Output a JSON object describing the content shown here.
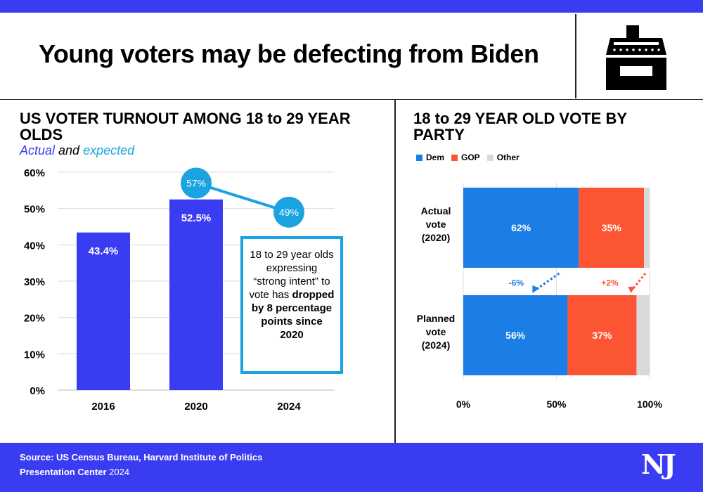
{
  "header": {
    "title": "Young voters may be defecting from Biden",
    "icon": "ballot-box-icon"
  },
  "left_panel": {
    "title_line1": "US VOTER TURNOUT AMONG 18 to 29 YEAR",
    "title_line2": "OLDS",
    "subtitle_actual": "Actual",
    "subtitle_and": " and ",
    "subtitle_expected": "expected",
    "note_plain": "18 to 29 year olds expressing “strong intent” to vote has",
    "note_bold": "dropped by 8 percentage points since 2020"
  },
  "right_panel": {
    "title_line1": "18 to 29 YEAR OLD VOTE BY",
    "title_line2": "PARTY",
    "legend": [
      "Dem",
      "GOP",
      "Other"
    ]
  },
  "colors": {
    "actual": "#3a3cf2",
    "expected": "#1aa3e0",
    "dem": "#1a7ee6",
    "gop": "#fc5533",
    "other": "#d9d9d9",
    "brand": "#3a3cf2"
  },
  "chart_data": [
    {
      "type": "bar",
      "title": "US VOTER TURNOUT AMONG 18 to 29 YEAR OLDS",
      "categories": [
        "2016",
        "2020",
        "2024"
      ],
      "series": [
        {
          "name": "Actual",
          "values": [
            43.4,
            52.5,
            null
          ],
          "labels": [
            "43.4%",
            "52.5%",
            ""
          ]
        },
        {
          "name": "expected",
          "values": [
            null,
            57,
            49
          ],
          "labels": [
            "",
            "57%",
            "49%"
          ]
        }
      ],
      "ylim": [
        0,
        60
      ],
      "yticks": [
        0,
        10,
        20,
        30,
        40,
        50,
        60
      ],
      "ytick_labels": [
        "0%",
        "10%",
        "20%",
        "30%",
        "40%",
        "50%",
        "60%"
      ],
      "grid": true
    },
    {
      "type": "bar",
      "orientation": "horizontal",
      "stacked": true,
      "title": "18 to 29 YEAR OLD VOTE BY PARTY",
      "categories": [
        "Actual vote (2020)",
        "Planned vote (2024)"
      ],
      "category_lines": [
        [
          "Actual",
          "vote",
          "(2020)"
        ],
        [
          "Planned",
          "vote",
          "(2024)"
        ]
      ],
      "series": [
        {
          "name": "Dem",
          "values": [
            62,
            56
          ],
          "labels": [
            "62%",
            "56%"
          ]
        },
        {
          "name": "GOP",
          "values": [
            35,
            37
          ],
          "labels": [
            "35%",
            "37%"
          ]
        },
        {
          "name": "Other",
          "values": [
            3,
            7
          ],
          "labels": [
            "",
            ""
          ]
        }
      ],
      "xlim": [
        0,
        100
      ],
      "xticks": [
        0,
        50,
        100
      ],
      "xtick_labels": [
        "0%",
        "50%",
        "100%"
      ],
      "legend_position": "top-left",
      "annotations": [
        {
          "text": "-6%",
          "series": "Dem"
        },
        {
          "text": "+2%",
          "series": "GOP"
        }
      ]
    }
  ],
  "footer": {
    "source": "Source: US Census Bureau, Harvard Institute of Politics",
    "credit_bold": "Presentation Center",
    "credit_year": " 2024",
    "logo": "NJ"
  }
}
